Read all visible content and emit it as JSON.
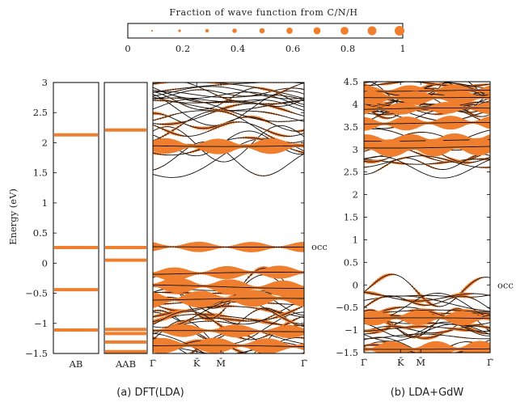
{
  "colors": {
    "dot": "#ef7f2e",
    "band": "#111111",
    "axis": "#000000"
  },
  "legend": {
    "title": "Fraction of wave function from C/N/H",
    "ticks": [
      "0",
      "0.2",
      "0.4",
      "0.6",
      "0.8",
      "1"
    ],
    "dot_fractions": [
      0.1,
      0.2,
      0.3,
      0.4,
      0.5,
      0.6,
      0.7,
      0.8,
      0.9,
      1.0
    ]
  },
  "chart_data": [
    {
      "type": "scatter",
      "panel": "a",
      "caption": "(a) DFT(LDA)",
      "ylabel": "Energy (eV)",
      "ylim": [
        -1.5,
        3
      ],
      "yticks": [
        "3",
        "2.5",
        "2",
        "1.5",
        "1",
        "0.5",
        "0",
        "−0.5",
        "−1",
        "−1.5"
      ],
      "ytick_values": [
        3,
        2.5,
        2,
        1.5,
        1,
        0.5,
        0,
        -0.5,
        -1,
        -1.5
      ],
      "molecular_levels": [
        {
          "name": "AB",
          "energies": [
            2.13,
            0.26,
            -0.44,
            -1.11
          ]
        },
        {
          "name": "AAB",
          "energies": [
            2.21,
            0.26,
            0.05,
            -1.1,
            -1.17,
            -1.31,
            -1.47
          ]
        }
      ],
      "kpath": [
        "Γ̄",
        "K̄",
        "M̄",
        "Γ̄"
      ],
      "occ_label": "occ",
      "occ_energy": 0.27,
      "flat_bands": [
        1.95,
        0.27,
        -0.17,
        -0.39,
        -0.6,
        -1.13,
        -1.38
      ]
    },
    {
      "type": "scatter",
      "panel": "b",
      "caption": "(b) LDA+GdW",
      "ylim": [
        -1.5,
        4.5
      ],
      "yticks": [
        "4.5",
        "4",
        "3.5",
        "3",
        "2.5",
        "2",
        "1.5",
        "1",
        "0.5",
        "0",
        "−0.5",
        "−1",
        "−1.5"
      ],
      "ytick_values": [
        4.5,
        4,
        3.5,
        3,
        2.5,
        2,
        1.5,
        1,
        0.5,
        0,
        -0.5,
        -1,
        -1.5
      ],
      "kpath": [
        "Γ̄",
        "K̄",
        "M̄",
        "Γ̄"
      ],
      "occ_label": "occ",
      "occ_energy": 0,
      "flat_bands": [
        4.3,
        4.15,
        3.9,
        3.58,
        3.2,
        3.05,
        -0.74,
        -1.42
      ]
    }
  ]
}
